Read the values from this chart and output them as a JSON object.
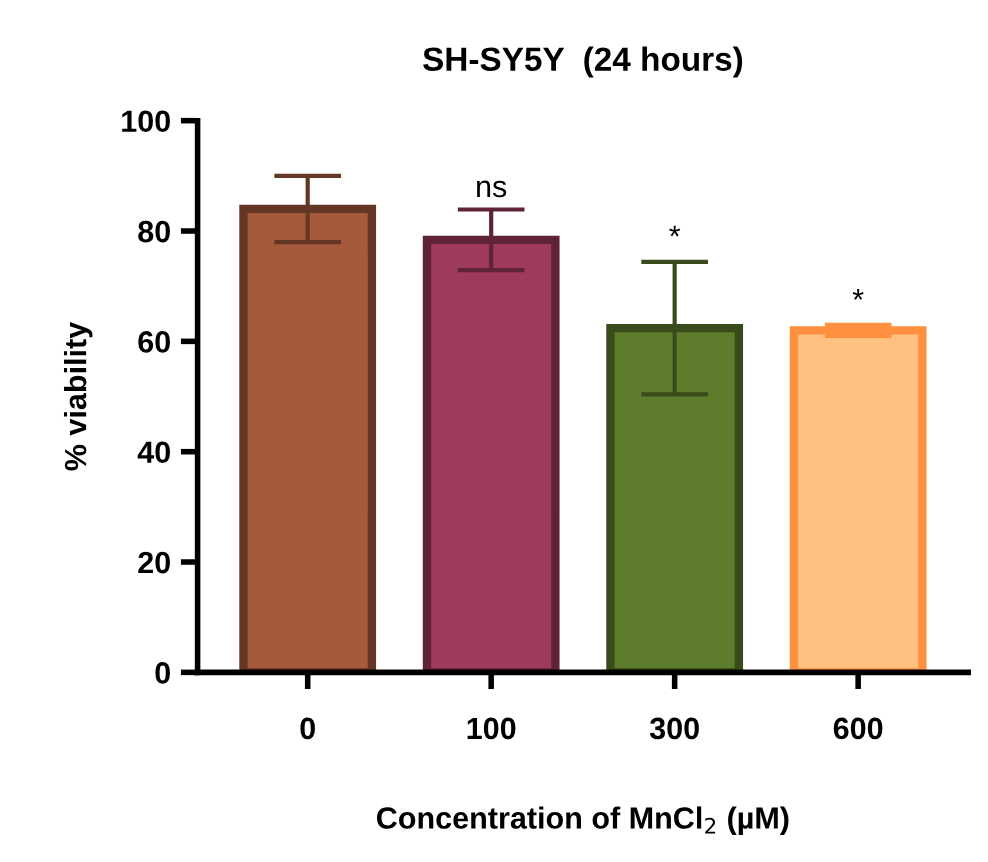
{
  "chart_data": {
    "type": "bar",
    "title": "SH-SY5Y  (24 hours)",
    "xlabel": "Concentration of MnCl$_{2}$ (µM)",
    "ylabel": "% viability",
    "categories": [
      "0",
      "100",
      "300",
      "600"
    ],
    "values": [
      84,
      78.4,
      62.4,
      62
    ],
    "errors": [
      6,
      5.5,
      12,
      1
    ],
    "colors": [
      "#a65a3c",
      "#9e3a5e",
      "#5e7d2c",
      "#ffc080"
    ],
    "annotations": [
      {
        "text": "ns",
        "x": "100",
        "y": 83.5
      },
      {
        "text": "*",
        "x": "300",
        "y": 74.5
      },
      {
        "text": "*",
        "x": "600",
        "y": 63
      }
    ],
    "ylim": [
      0,
      100
    ],
    "yticks": [
      0,
      20,
      40,
      60,
      80,
      100
    ],
    "grid": false,
    "legend": false
  }
}
